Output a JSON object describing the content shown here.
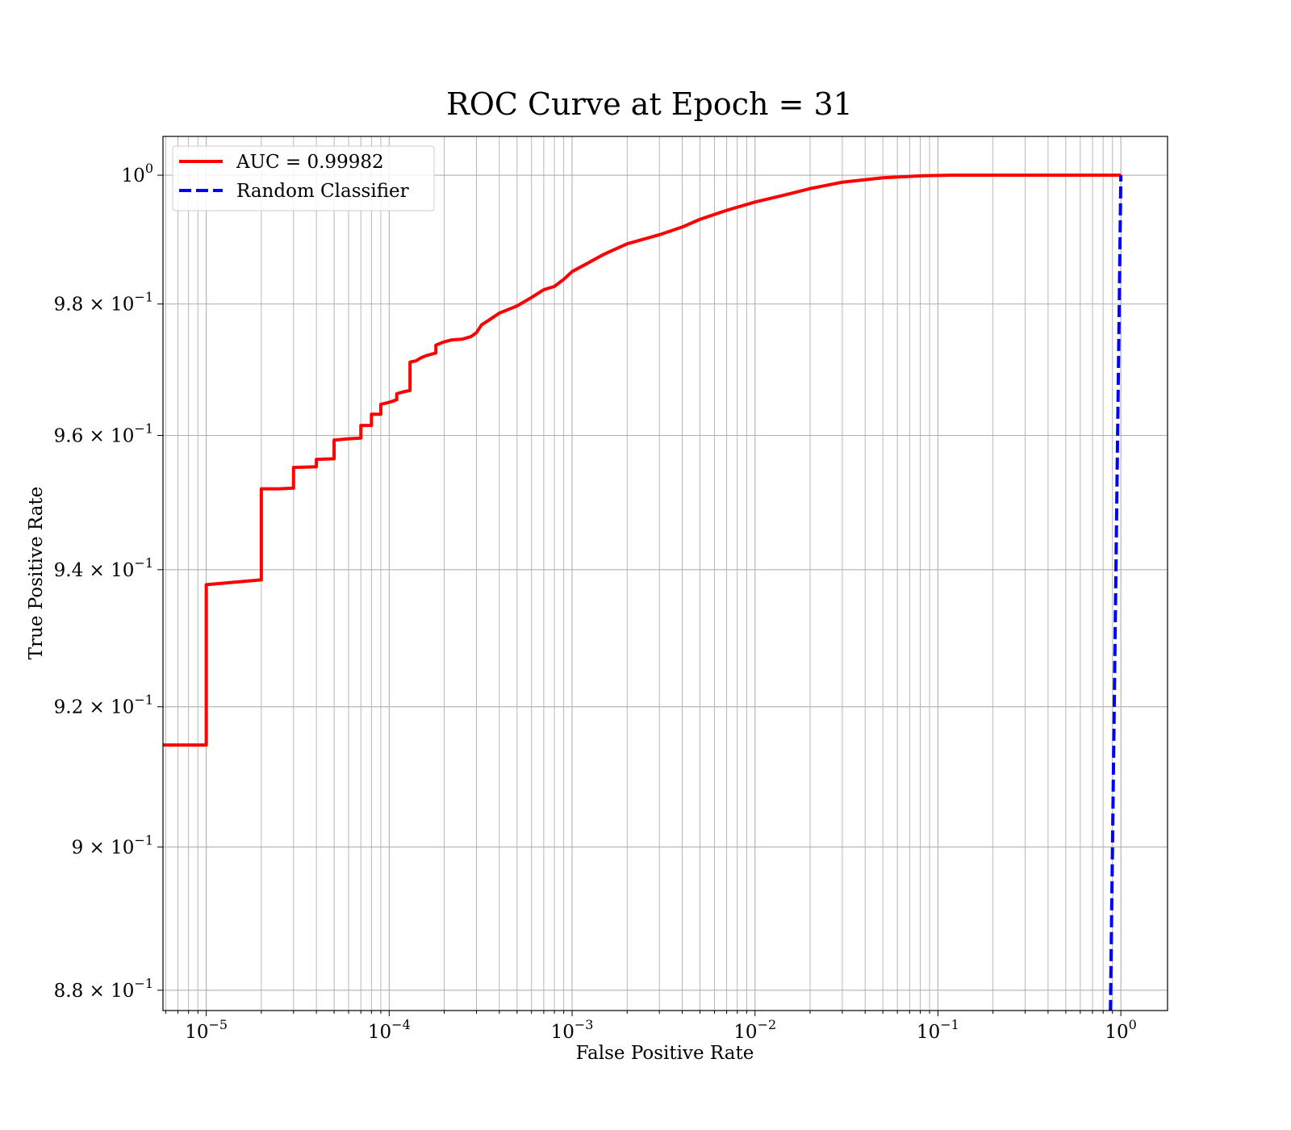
{
  "chart_data": {
    "type": "line",
    "title": "ROC Curve at Epoch = 31",
    "xlabel": "False Positive Rate",
    "ylabel": "True Positive Rate",
    "x_scale": "log",
    "y_scale": "log",
    "xlim": [
      5.8e-06,
      1.8
    ],
    "ylim": [
      0.8772,
      1.0061
    ],
    "grid": "both-major-and-minor",
    "legend_position": "top-left",
    "x_ticks": [
      {
        "value": 1e-05,
        "base": "10",
        "exp": "−5"
      },
      {
        "value": 0.0001,
        "base": "10",
        "exp": "−4"
      },
      {
        "value": 0.001,
        "base": "10",
        "exp": "−3"
      },
      {
        "value": 0.01,
        "base": "10",
        "exp": "−2"
      },
      {
        "value": 0.1,
        "base": "10",
        "exp": "−1"
      },
      {
        "value": 1,
        "base": "10",
        "exp": "0"
      }
    ],
    "y_ticks": [
      {
        "value": 1.0,
        "base": "10",
        "exp": "0"
      },
      {
        "value": 0.98,
        "base": "9.8 × 10",
        "exp": "−1"
      },
      {
        "value": 0.96,
        "base": "9.6 × 10",
        "exp": "−1"
      },
      {
        "value": 0.94,
        "base": "9.4 × 10",
        "exp": "−1"
      },
      {
        "value": 0.92,
        "base": "9.2 × 10",
        "exp": "−1"
      },
      {
        "value": 0.9,
        "base": "9 × 10",
        "exp": "−1"
      },
      {
        "value": 0.88,
        "base": "8.8 × 10",
        "exp": "−1"
      }
    ],
    "series": [
      {
        "name": "AUC = 0.99982",
        "color": "#ff0000",
        "style": "solid",
        "x": [
          5.8e-06,
          1e-05,
          1e-05,
          2e-05,
          2e-05,
          2.5e-05,
          3e-05,
          3e-05,
          4e-05,
          4e-05,
          5e-05,
          5e-05,
          6e-05,
          7e-05,
          7e-05,
          8e-05,
          8e-05,
          9e-05,
          9e-05,
          0.0001,
          0.00011,
          0.00011,
          0.00012,
          0.00013,
          0.00013,
          0.00014,
          0.00015,
          0.00016,
          0.00018,
          0.00018,
          0.0002,
          0.00022,
          0.00025,
          0.00028,
          0.0003,
          0.00032,
          0.00035,
          0.0004,
          0.0005,
          0.0006,
          0.0007,
          0.0008,
          0.0009,
          0.001,
          0.0012,
          0.0015,
          0.002,
          0.003,
          0.004,
          0.005,
          0.007,
          0.01,
          0.015,
          0.02,
          0.03,
          0.05,
          0.08,
          0.12,
          0.2,
          0.5,
          1.0
        ],
        "y": [
          0.9145,
          0.9145,
          0.9378,
          0.9385,
          0.952,
          0.952,
          0.9521,
          0.9552,
          0.9553,
          0.9564,
          0.9565,
          0.9593,
          0.9595,
          0.9596,
          0.9615,
          0.9615,
          0.9632,
          0.9632,
          0.9647,
          0.965,
          0.9654,
          0.9663,
          0.9666,
          0.9668,
          0.9711,
          0.9713,
          0.9718,
          0.9721,
          0.9725,
          0.9737,
          0.9742,
          0.9745,
          0.9746,
          0.975,
          0.9756,
          0.9768,
          0.9775,
          0.9786,
          0.9797,
          0.981,
          0.9822,
          0.9827,
          0.9838,
          0.985,
          0.9862,
          0.9877,
          0.9893,
          0.9907,
          0.9919,
          0.9931,
          0.9945,
          0.9958,
          0.997,
          0.9979,
          0.9989,
          0.9996,
          0.9999,
          1.0,
          1.0,
          1.0,
          1.0
        ]
      },
      {
        "name": "Random Classifier",
        "color": "#0000ff",
        "style": "dashed",
        "x": [
          0.877,
          1.0
        ],
        "y": [
          0.877,
          1.0
        ]
      }
    ]
  }
}
